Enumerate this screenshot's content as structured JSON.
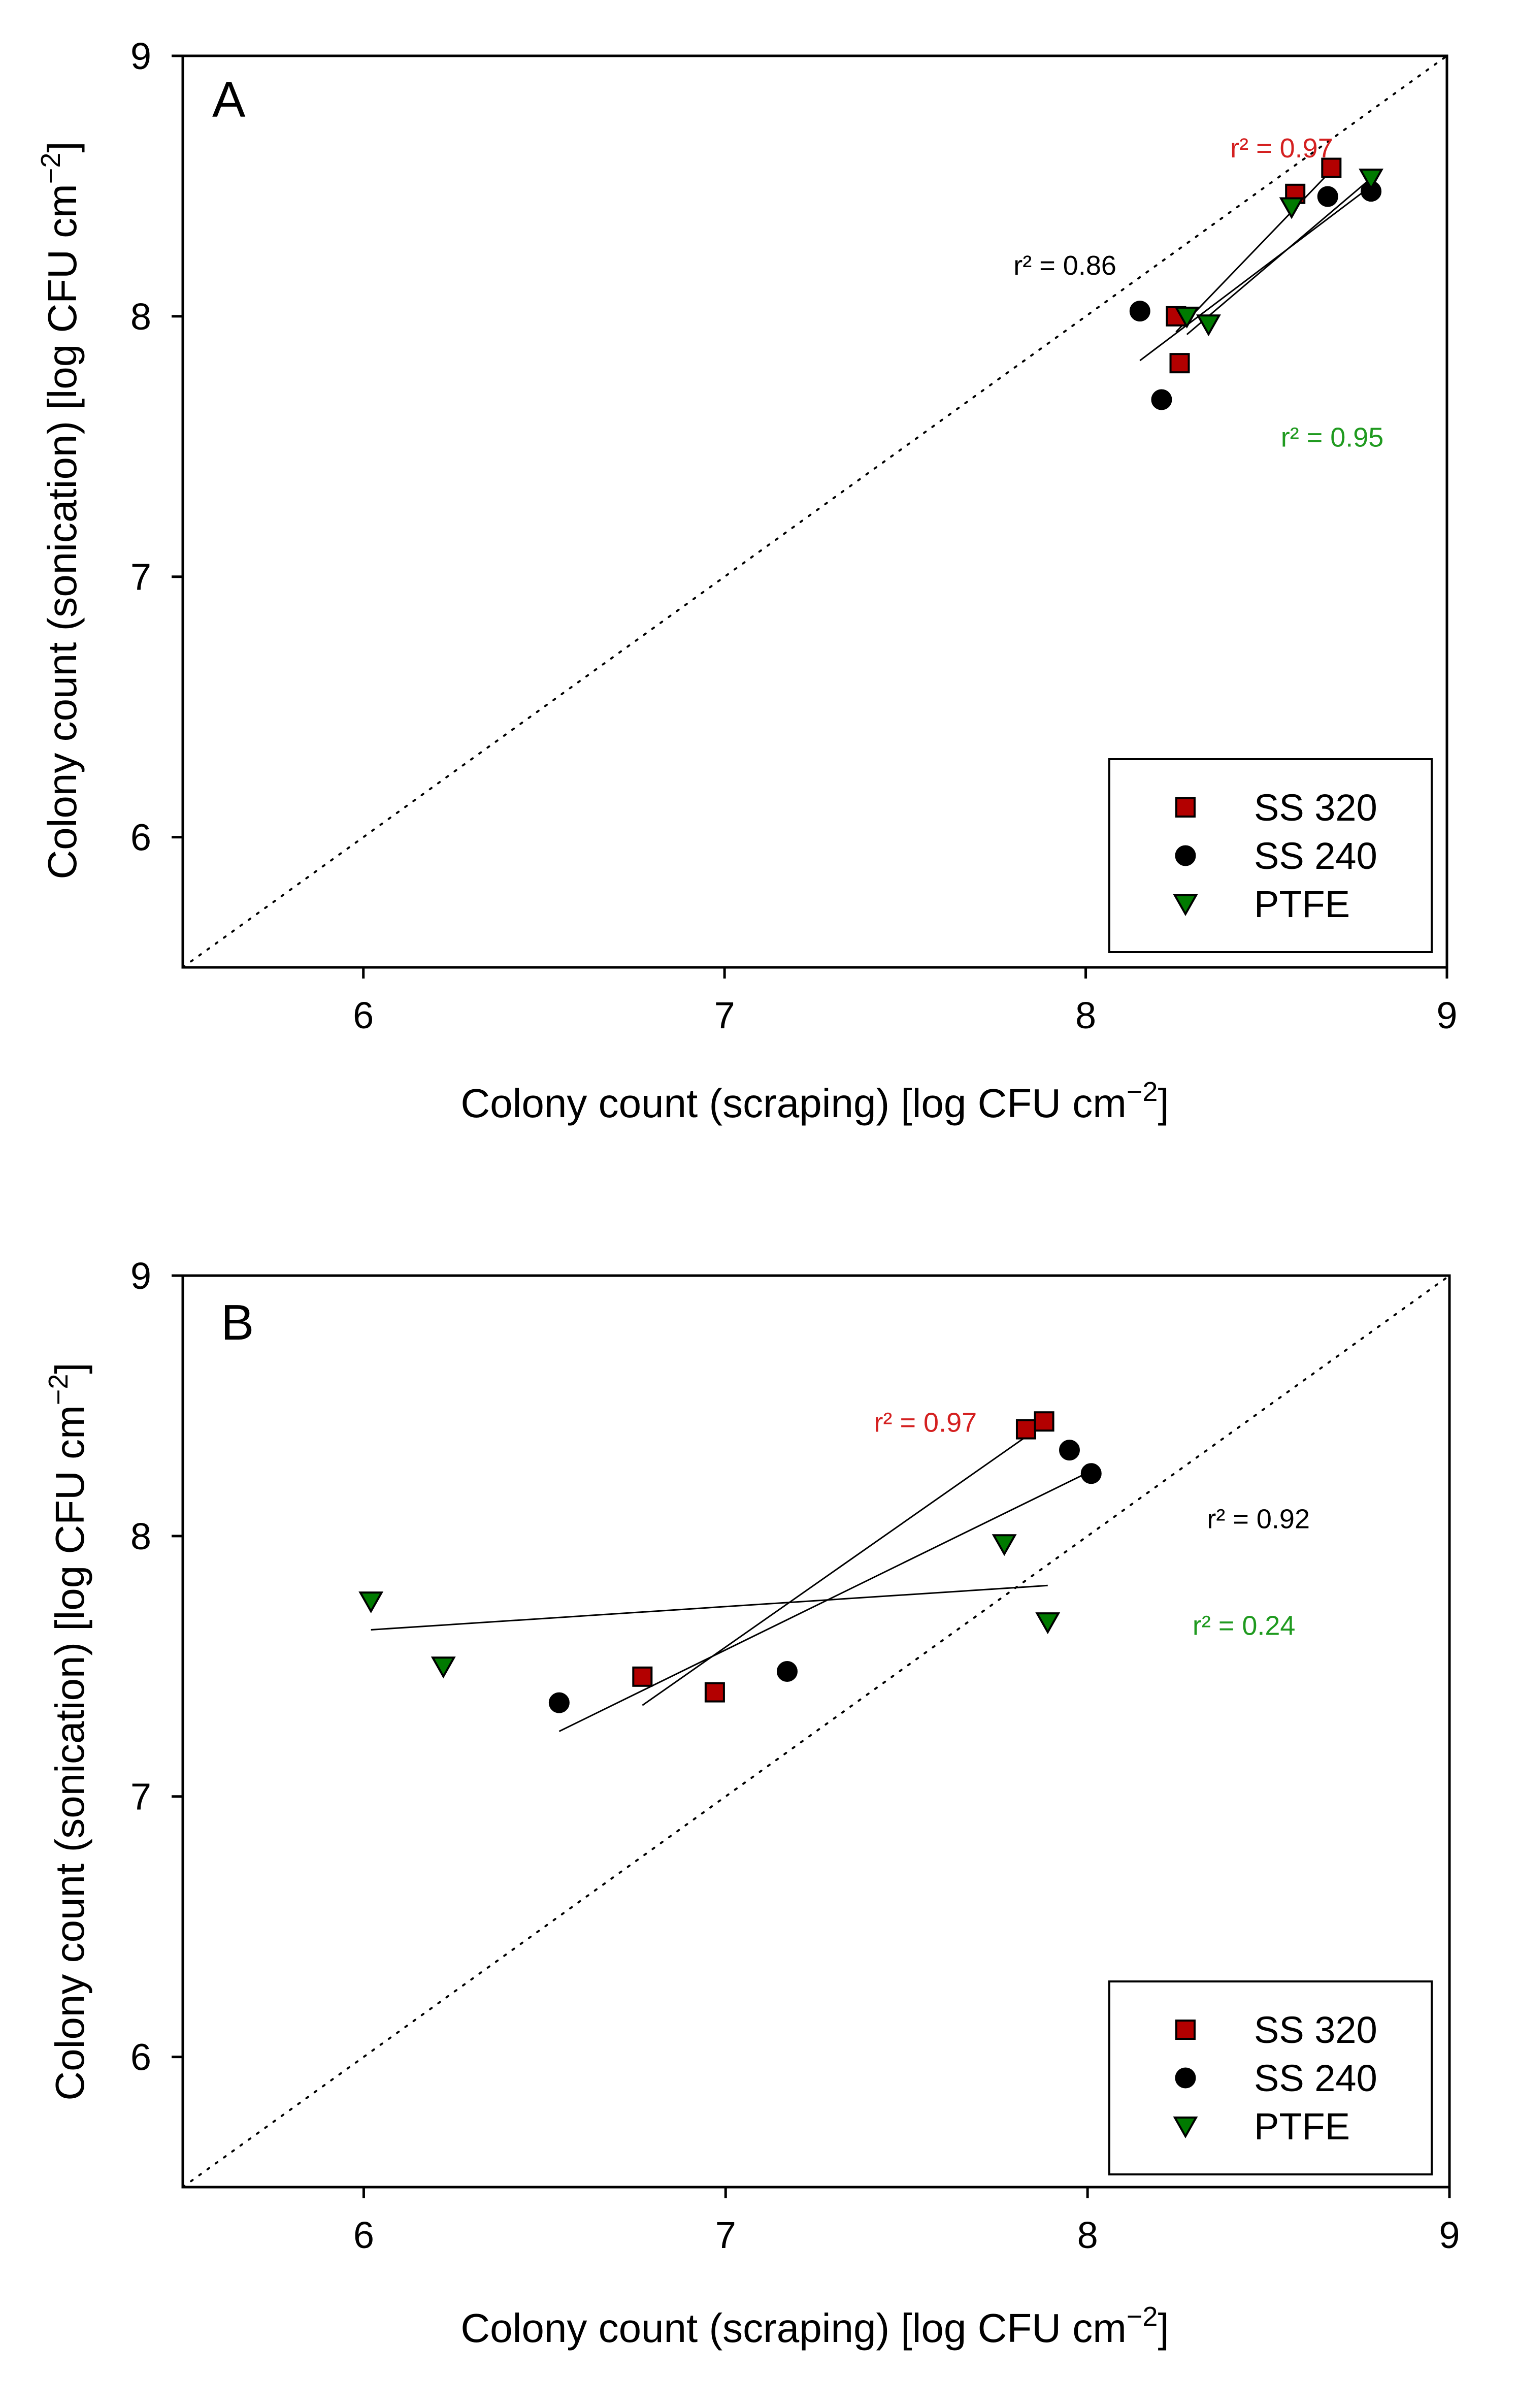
{
  "colors": {
    "ss320": "#b30000",
    "ss240": "#000000",
    "ptfe": "#007a00",
    "red_text": "#d42020",
    "green_text": "#1f9a1f",
    "black_text": "#000000"
  },
  "chart_data": [
    {
      "type": "scatter",
      "panel_label": "A",
      "xlabel_main": "Colony count (scraping) [log CFU cm",
      "xlabel_exp": "−2",
      "xlabel_tail": "]",
      "ylabel_main": "Colony count (sonication) [log CFU cm",
      "ylabel_exp": "−2",
      "ylabel_tail": "]",
      "xlim": [
        5.5,
        9
      ],
      "ylim": [
        5.5,
        9
      ],
      "xticks": [
        "6",
        "7",
        "8",
        "9"
      ],
      "yticks": [
        "6",
        "7",
        "8",
        "9"
      ],
      "identity_line": true,
      "legend": {
        "position": "bottom-right",
        "entries": [
          {
            "label": "SS 320",
            "marker": "square",
            "color_key": "ss320"
          },
          {
            "label": "SS 240",
            "marker": "circle",
            "color_key": "ss240"
          },
          {
            "label": "PTFE",
            "marker": "triangle-down",
            "color_key": "ptfe"
          }
        ]
      },
      "series": [
        {
          "name": "SS 320",
          "marker": "square",
          "color_key": "ss320",
          "points": [
            [
              8.25,
              8.0
            ],
            [
              8.26,
              7.82
            ],
            [
              8.58,
              8.47
            ],
            [
              8.68,
              8.57
            ]
          ],
          "fit": [
            [
              8.25,
              7.94
            ],
            [
              8.68,
              8.56
            ]
          ],
          "r2_label": "r² = 0.97",
          "r2_color_key": "red_text",
          "r2_at": [
            8.4,
            8.61
          ]
        },
        {
          "name": "SS 240",
          "marker": "circle",
          "color_key": "ss240",
          "points": [
            [
              8.15,
              8.02
            ],
            [
              8.21,
              7.68
            ],
            [
              8.67,
              8.46
            ],
            [
              8.79,
              8.48
            ]
          ],
          "fit": [
            [
              8.15,
              7.83
            ],
            [
              8.79,
              8.5
            ]
          ],
          "r2_label": "r² = 0.86",
          "r2_color_key": "black_text",
          "r2_at": [
            7.8,
            8.16
          ]
        },
        {
          "name": "PTFE",
          "marker": "triangle-down",
          "color_key": "ptfe",
          "points": [
            [
              8.28,
              8.0
            ],
            [
              8.34,
              7.97
            ],
            [
              8.57,
              8.42
            ],
            [
              8.79,
              8.53
            ]
          ],
          "fit": [
            [
              8.28,
              7.93
            ],
            [
              8.79,
              8.53
            ]
          ],
          "r2_label": "r² = 0.95",
          "r2_color_key": "green_text",
          "r2_at": [
            8.54,
            7.5
          ]
        }
      ]
    },
    {
      "type": "scatter",
      "panel_label": "B",
      "xlabel_main": "Colony count (scraping) [log CFU cm",
      "xlabel_exp": "−2",
      "xlabel_tail": "]",
      "ylabel_main": "Colony count (sonication) [log CFU cm",
      "ylabel_exp": "−2",
      "ylabel_tail": "]",
      "xlim": [
        5.5,
        9
      ],
      "ylim": [
        5.5,
        9
      ],
      "xticks": [
        "6",
        "7",
        "8",
        "9"
      ],
      "yticks": [
        "6",
        "7",
        "8",
        "9"
      ],
      "identity_line": true,
      "legend": {
        "position": "bottom-right",
        "entries": [
          {
            "label": "SS 320",
            "marker": "square",
            "color_key": "ss320"
          },
          {
            "label": "SS 240",
            "marker": "circle",
            "color_key": "ss240"
          },
          {
            "label": "PTFE",
            "marker": "triangle-down",
            "color_key": "ptfe"
          }
        ]
      },
      "series": [
        {
          "name": "SS 320",
          "marker": "square",
          "color_key": "ss320",
          "points": [
            [
              6.77,
              7.46
            ],
            [
              6.97,
              7.4
            ],
            [
              7.83,
              8.41
            ],
            [
              7.88,
              8.44
            ]
          ],
          "fit": [
            [
              6.77,
              7.35
            ],
            [
              7.88,
              8.43
            ]
          ],
          "r2_label": "r² = 0.97",
          "r2_color_key": "red_text",
          "r2_at": [
            7.41,
            8.4
          ]
        },
        {
          "name": "SS 240",
          "marker": "circle",
          "color_key": "ss240",
          "points": [
            [
              6.54,
              7.36
            ],
            [
              7.17,
              7.48
            ],
            [
              7.95,
              8.33
            ],
            [
              8.01,
              8.24
            ]
          ],
          "fit": [
            [
              6.54,
              7.25
            ],
            [
              8.01,
              8.25
            ]
          ],
          "r2_label": "r² = 0.92",
          "r2_color_key": "black_text",
          "r2_at": [
            8.33,
            8.03
          ]
        },
        {
          "name": "PTFE",
          "marker": "triangle-down",
          "color_key": "ptfe",
          "points": [
            [
              6.02,
              7.75
            ],
            [
              6.22,
              7.5
            ],
            [
              7.77,
              7.97
            ],
            [
              7.89,
              7.67
            ]
          ],
          "fit": [
            [
              6.02,
              7.64
            ],
            [
              7.89,
              7.81
            ]
          ],
          "r2_label": "r² = 0.24",
          "r2_color_key": "green_text",
          "r2_at": [
            8.29,
            7.62
          ]
        }
      ]
    }
  ]
}
